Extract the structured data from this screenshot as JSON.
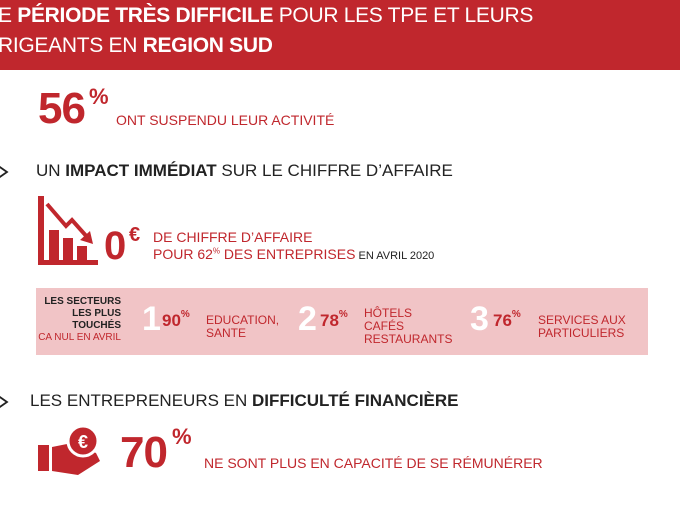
{
  "banner": {
    "line1_pre": "E ",
    "line1_bold": "PÉRIODE TRÈS DIFFICILE",
    "line1_post": " POUR LES TPE ET LEURS",
    "line2_pre": "RIGEANTS EN ",
    "line2_bold": "REGION SUD"
  },
  "stat1": {
    "value": "56",
    "unit": "%",
    "text": "ONT SUSPENDU LEUR ACTIVITÉ"
  },
  "section1": {
    "pre": "UN ",
    "bold": "IMPACT IMMÉDIAT",
    "post": " SUR LE CHIFFRE D’AFFAIRE"
  },
  "stat2": {
    "value": "0",
    "unit": "€",
    "line1": "DE CHIFFRE D’AFFAIRE",
    "line2_pre": "POUR 62",
    "line2_sup": "%",
    "line2_mid": " DES ENTREPRISES",
    "line2_small": " EN AVRIL 2020"
  },
  "sectors": {
    "label_lines": [
      "LES SECTEURS",
      "LES PLUS",
      "TOUCHÉS"
    ],
    "label_sub": "CA NUL EN AVRIL",
    "items": [
      {
        "rank": "1",
        "pct": "90",
        "unit": "%",
        "name_lines": [
          "EDUCATION,",
          "SANTE"
        ]
      },
      {
        "rank": "2",
        "pct": "78",
        "unit": "%",
        "name_lines": [
          "HÔTELS",
          "CAFÉS",
          "RESTAURANTS"
        ]
      },
      {
        "rank": "3",
        "pct": "76",
        "unit": "%",
        "name_lines": [
          "SERVICES AUX",
          "PARTICULIERS"
        ]
      }
    ]
  },
  "section2": {
    "pre": "LES ENTREPRENEURS EN ",
    "bold": "DIFFICULTÉ FINANCIÈRE"
  },
  "stat3": {
    "value": "70",
    "unit": "%",
    "text": "NE SONT PLUS EN CAPACITÉ DE SE RÉMUNÉRER"
  },
  "colors": {
    "accent": "#c0272d",
    "panel": "#f1c4c6"
  },
  "icons": [
    "arrow-right-icon",
    "declining-bar-chart-icon",
    "hand-coin-euro-icon"
  ]
}
